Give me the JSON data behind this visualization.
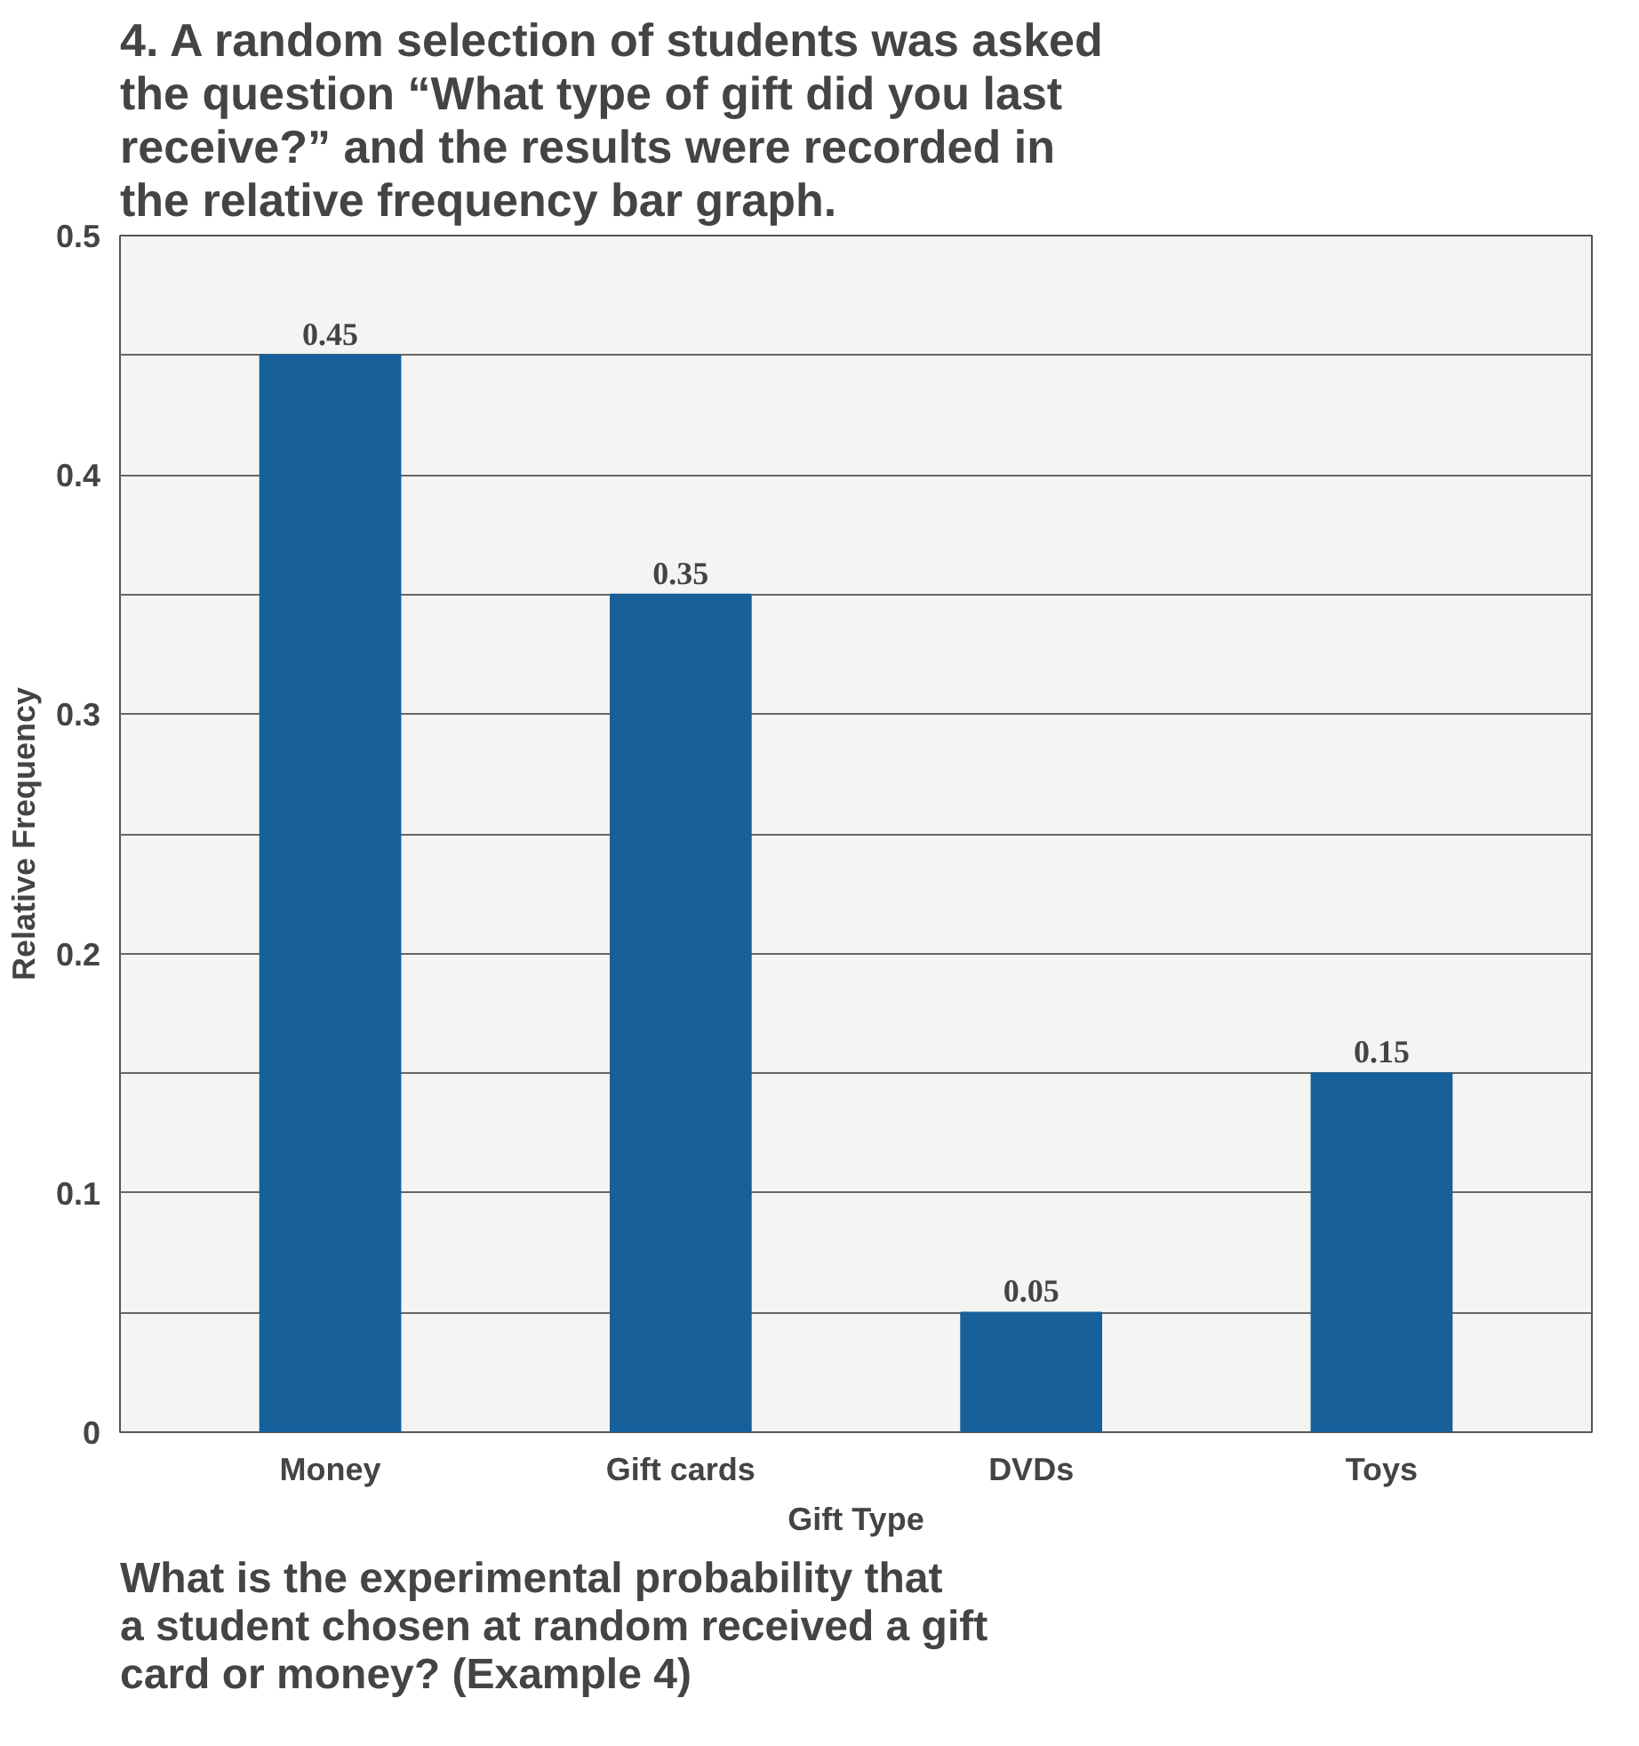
{
  "chart_data": {
    "type": "bar",
    "title": "4. A random selection of students was asked the question “What type of gift did you last receive?” and the results were recorded in the relative frequency bar graph.",
    "xlabel": "Gift Type",
    "ylabel": "Relative Frequency",
    "categories": [
      "Money",
      "Gift cards",
      "DVDs",
      "Toys"
    ],
    "values": [
      0.45,
      0.35,
      0.05,
      0.15
    ],
    "color": "#17609a",
    "ylim": [
      0,
      0.5
    ],
    "yticks": [
      0,
      {
        "value": 0.05,
        "label": null
      },
      0.1,
      {
        "value": 0.15,
        "label": null
      },
      0.2,
      {
        "value": 0.25,
        "label": null
      },
      0.3,
      {
        "value": 0.35,
        "label": null
      },
      0.4,
      {
        "value": 0.45,
        "label": null
      },
      0.5
    ],
    "grid": "y",
    "data_labels": true,
    "annotations": [
      "What is the experimental probability that a student chosen at random received a gift card or money? (Example 4)"
    ]
  }
}
